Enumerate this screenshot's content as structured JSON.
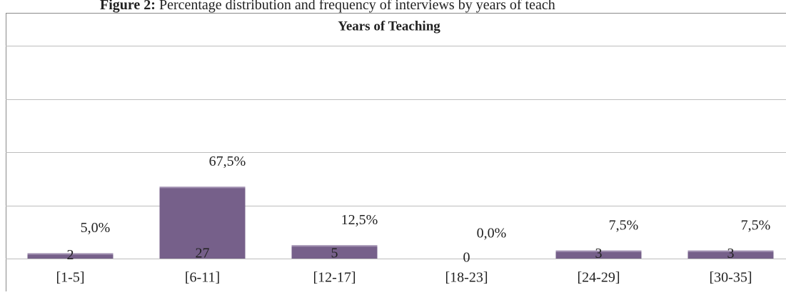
{
  "caption_label": "Figure 2:",
  "caption": "Percentage distribution and frequency of interviews by years of teach",
  "chart_data": {
    "type": "bar",
    "title": "Years of Teaching",
    "categories": [
      "[1-5]",
      "[6-11]",
      "[12-17]",
      "[18-23]",
      "[24-29]",
      "[30-35]"
    ],
    "values": [
      2,
      27,
      5,
      0,
      3,
      3
    ],
    "percentages": [
      5.0,
      67.5,
      12.5,
      0.0,
      7.5,
      7.5
    ],
    "percentage_labels": [
      "5,0%",
      "67,5%",
      "12,5%",
      "0,0%",
      "7,5%",
      "7,5%"
    ],
    "color": "#76608a",
    "ylim": [
      0,
      80
    ],
    "yticks": [
      0,
      20,
      40,
      60,
      80
    ],
    "grid": true
  }
}
